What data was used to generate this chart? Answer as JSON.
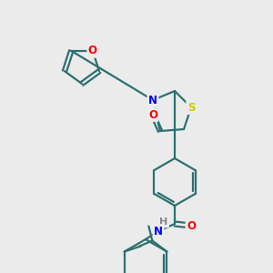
{
  "bg_color": "#ebebeb",
  "bond_color": "#2d7070",
  "atom_colors": {
    "O": "#ff0000",
    "N": "#0000ff",
    "S": "#cccc00",
    "H": "#888888",
    "C": "#2d7070"
  },
  "figsize": [
    3.0,
    3.0
  ],
  "dpi": 100
}
